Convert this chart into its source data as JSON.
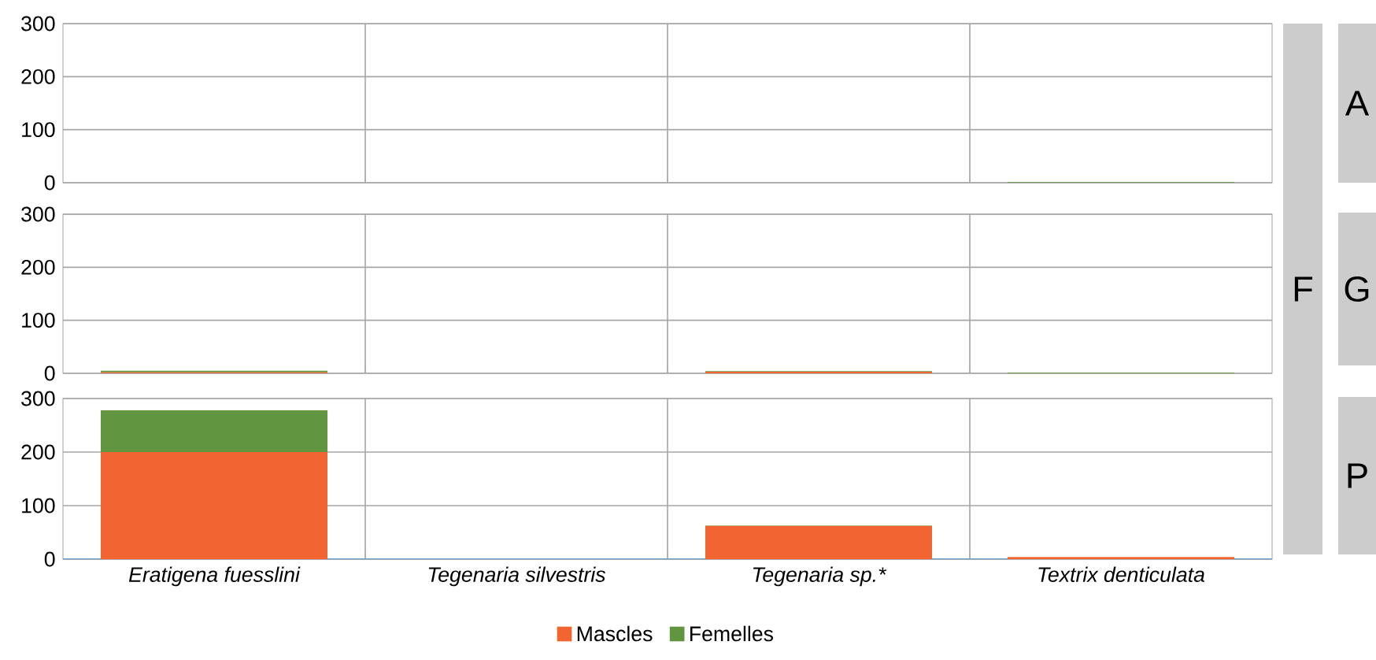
{
  "chart_data": [
    {
      "type": "bar",
      "stacked": true,
      "categories": [
        null,
        null,
        null,
        null
      ],
      "series": [
        {
          "color": "#f26430",
          "values": [
            0,
            0,
            0,
            0
          ]
        },
        {
          "color": "#62953f",
          "values": [
            0,
            0,
            0,
            1
          ]
        }
      ],
      "ylim": [
        0,
        300
      ],
      "yticks": [
        0,
        100,
        200,
        300
      ],
      "grid": true,
      "tick_labels": "y",
      "annotations": [
        "A",
        "F"
      ]
    },
    {
      "type": "bar",
      "stacked": true,
      "categories": [
        null,
        null,
        null,
        null
      ],
      "series": [
        {
          "color": "#f26430",
          "values": [
            2,
            0,
            3,
            0
          ]
        },
        {
          "color": "#62953f",
          "values": [
            3,
            0,
            1,
            1
          ]
        }
      ],
      "ylim": [
        0,
        300
      ],
      "yticks": [
        0,
        100,
        200,
        300
      ],
      "grid": true,
      "tick_labels": "y",
      "annotations": [
        "G"
      ]
    },
    {
      "type": "bar",
      "stacked": true,
      "categories": [
        "Eratigena fuesslini",
        "Tegenaria silvestris",
        "Tegenaria sp.*",
        "Textrix denticulata"
      ],
      "series": [
        {
          "name": "Mascles",
          "color": "#f26430",
          "values": [
            200,
            0,
            62,
            4
          ]
        },
        {
          "name": "Femelles",
          "color": "#62953f",
          "values": [
            78,
            0,
            1,
            0
          ]
        }
      ],
      "ylim": [
        0,
        300
      ],
      "yticks": [
        0,
        100,
        200,
        300
      ],
      "grid": true,
      "legend": "bottom",
      "annotations": [
        "P"
      ]
    }
  ]
}
